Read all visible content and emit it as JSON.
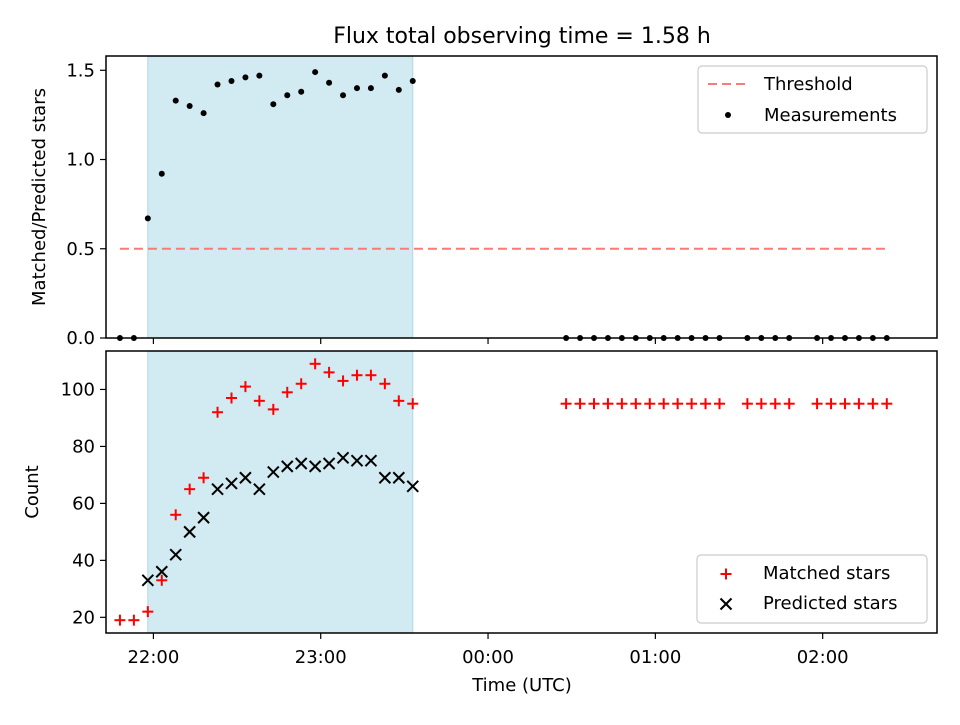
{
  "figure": {
    "title": "Flux total observing time = 1.58 h",
    "x_label": "Time (UTC)",
    "x_tick_labels": [
      "22:00",
      "23:00",
      "00:00",
      "01:00",
      "02:00"
    ]
  },
  "colors": {
    "threshold": "#ff7777",
    "measurements": "#000000",
    "matched": "#ff0000",
    "predicted": "#000000",
    "span": "#add8e6"
  },
  "chart_data": [
    {
      "type": "scatter",
      "panel": "top",
      "ylabel": "Matched/Predicted stars",
      "ylim": [
        0,
        1.58
      ],
      "yticks": [
        0.0,
        0.5,
        1.0,
        1.5
      ],
      "ytick_labels": [
        "0.0",
        "0.5",
        "1.0",
        "1.5"
      ],
      "xlim": [
        "21:43",
        "02:41"
      ],
      "xticks": [
        "22:00",
        "23:00",
        "00:00",
        "01:00",
        "02:00"
      ],
      "span": {
        "start": "21:58",
        "end": "23:33"
      },
      "threshold": {
        "y": 0.5,
        "x_start": "21:48",
        "x_end": "02:24"
      },
      "legend": {
        "position": "top-right",
        "entries": [
          "Threshold",
          "Measurements"
        ]
      },
      "series": [
        {
          "name": "Measurements",
          "marker": "dot",
          "points": [
            [
              "21:48",
              0.0
            ],
            [
              "21:53",
              0.0
            ],
            [
              "21:58",
              0.67
            ],
            [
              "22:03",
              0.92
            ],
            [
              "22:08",
              1.33
            ],
            [
              "22:13",
              1.3
            ],
            [
              "22:18",
              1.26
            ],
            [
              "22:23",
              1.42
            ],
            [
              "22:28",
              1.44
            ],
            [
              "22:33",
              1.46
            ],
            [
              "22:38",
              1.47
            ],
            [
              "22:43",
              1.31
            ],
            [
              "22:48",
              1.36
            ],
            [
              "22:53",
              1.38
            ],
            [
              "22:58",
              1.49
            ],
            [
              "23:03",
              1.43
            ],
            [
              "23:08",
              1.36
            ],
            [
              "23:13",
              1.4
            ],
            [
              "23:18",
              1.4
            ],
            [
              "23:23",
              1.47
            ],
            [
              "23:28",
              1.39
            ],
            [
              "23:33",
              1.44
            ],
            [
              "00:28",
              0.0
            ],
            [
              "00:33",
              0.0
            ],
            [
              "00:38",
              0.0
            ],
            [
              "00:43",
              0.0
            ],
            [
              "00:48",
              0.0
            ],
            [
              "00:53",
              0.0
            ],
            [
              "00:58",
              0.0
            ],
            [
              "01:03",
              0.0
            ],
            [
              "01:08",
              0.0
            ],
            [
              "01:13",
              0.0
            ],
            [
              "01:18",
              0.0
            ],
            [
              "01:23",
              0.0
            ],
            [
              "01:33",
              0.0
            ],
            [
              "01:38",
              0.0
            ],
            [
              "01:43",
              0.0
            ],
            [
              "01:48",
              0.0
            ],
            [
              "01:58",
              0.0
            ],
            [
              "02:03",
              0.0
            ],
            [
              "02:08",
              0.0
            ],
            [
              "02:13",
              0.0
            ],
            [
              "02:18",
              0.0
            ],
            [
              "02:23",
              0.0
            ]
          ]
        }
      ]
    },
    {
      "type": "scatter",
      "panel": "bottom",
      "ylabel": "Count",
      "ylim": [
        14.5,
        113.5
      ],
      "yticks": [
        20,
        40,
        60,
        80,
        100
      ],
      "ytick_labels": [
        "20",
        "40",
        "60",
        "80",
        "100"
      ],
      "xlim": [
        "21:43",
        "02:41"
      ],
      "xticks": [
        "22:00",
        "23:00",
        "00:00",
        "01:00",
        "02:00"
      ],
      "span": {
        "start": "21:58",
        "end": "23:33"
      },
      "legend": {
        "position": "bottom-right",
        "entries": [
          "Matched stars",
          "Predicted stars"
        ]
      },
      "series": [
        {
          "name": "Matched stars",
          "marker": "plus",
          "points": [
            [
              "21:48",
              19
            ],
            [
              "21:53",
              19
            ],
            [
              "21:58",
              22
            ],
            [
              "22:03",
              33
            ],
            [
              "22:08",
              56
            ],
            [
              "22:13",
              65
            ],
            [
              "22:18",
              69
            ],
            [
              "22:23",
              92
            ],
            [
              "22:28",
              97
            ],
            [
              "22:33",
              101
            ],
            [
              "22:38",
              96
            ],
            [
              "22:43",
              93
            ],
            [
              "22:48",
              99
            ],
            [
              "22:53",
              102
            ],
            [
              "22:58",
              109
            ],
            [
              "23:03",
              106
            ],
            [
              "23:08",
              103
            ],
            [
              "23:13",
              105
            ],
            [
              "23:18",
              105
            ],
            [
              "23:23",
              102
            ],
            [
              "23:28",
              96
            ],
            [
              "23:33",
              95
            ],
            [
              "00:28",
              95
            ],
            [
              "00:33",
              95
            ],
            [
              "00:38",
              95
            ],
            [
              "00:43",
              95
            ],
            [
              "00:48",
              95
            ],
            [
              "00:53",
              95
            ],
            [
              "00:58",
              95
            ],
            [
              "01:03",
              95
            ],
            [
              "01:08",
              95
            ],
            [
              "01:13",
              95
            ],
            [
              "01:18",
              95
            ],
            [
              "01:23",
              95
            ],
            [
              "01:33",
              95
            ],
            [
              "01:38",
              95
            ],
            [
              "01:43",
              95
            ],
            [
              "01:48",
              95
            ],
            [
              "01:58",
              95
            ],
            [
              "02:03",
              95
            ],
            [
              "02:08",
              95
            ],
            [
              "02:13",
              95
            ],
            [
              "02:18",
              95
            ],
            [
              "02:23",
              95
            ]
          ]
        },
        {
          "name": "Predicted stars",
          "marker": "x",
          "points": [
            [
              "21:58",
              33
            ],
            [
              "22:03",
              36
            ],
            [
              "22:08",
              42
            ],
            [
              "22:13",
              50
            ],
            [
              "22:18",
              55
            ],
            [
              "22:23",
              65
            ],
            [
              "22:28",
              67
            ],
            [
              "22:33",
              69
            ],
            [
              "22:38",
              65
            ],
            [
              "22:43",
              71
            ],
            [
              "22:48",
              73
            ],
            [
              "22:53",
              74
            ],
            [
              "22:58",
              73
            ],
            [
              "23:03",
              74
            ],
            [
              "23:08",
              76
            ],
            [
              "23:13",
              75
            ],
            [
              "23:18",
              75
            ],
            [
              "23:23",
              69
            ],
            [
              "23:28",
              69
            ],
            [
              "23:33",
              66
            ]
          ]
        }
      ]
    }
  ]
}
